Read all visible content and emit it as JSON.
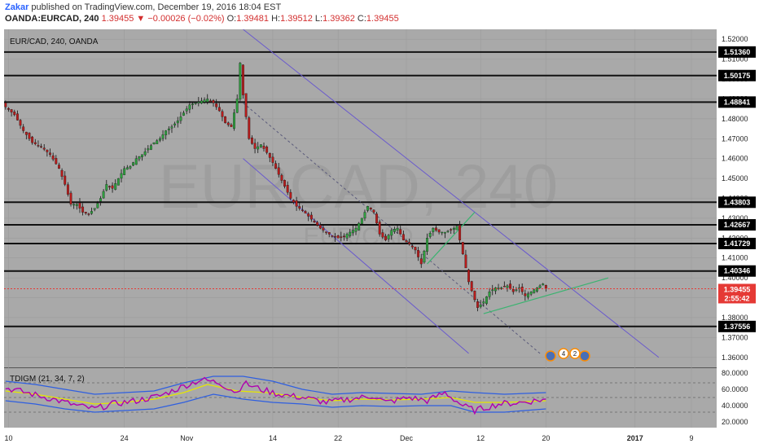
{
  "header": {
    "author": "Zakar",
    "published": "published on TradingView.com, December 19, 2016 18:04 EST",
    "symbol": "OANDA:EURCAD, 240",
    "last": "1.39455",
    "change": "▼ −0.00026 (−0.02%)",
    "ohlc_labels": [
      "O:",
      "H:",
      "L:",
      "C:"
    ],
    "ohlc_values": [
      "1.39481",
      "1.39512",
      "1.39362",
      "1.39455"
    ]
  },
  "colors": {
    "background": "#a9a9a9",
    "axis_bg": "#ffffff",
    "bull": "#2e9e3e",
    "bear": "#b71c1c",
    "channel": "#6a5acd",
    "trend": "#3cb371",
    "rsi": "#b000b0",
    "signal": "#e6e600",
    "bands": "#2f5fe0",
    "price_label": "#e53935"
  },
  "chart_data": [
    {
      "type": "candlestick",
      "title": "EUR/CAD, 240, OANDA",
      "watermark": "EURCAD, 240",
      "watermark_sub": "EUR/CAD",
      "ylim": [
        1.355,
        1.525
      ],
      "y_ticks": [
        1.52,
        1.51,
        1.5,
        1.49,
        1.48,
        1.47,
        1.46,
        1.45,
        1.44,
        1.43,
        1.42,
        1.41,
        1.4,
        1.39,
        1.38,
        1.37,
        1.36
      ],
      "x_ticks": [
        {
          "label": "10",
          "bar": 1
        },
        {
          "label": "24",
          "bar": 40
        },
        {
          "label": "Nov",
          "bar": 61
        },
        {
          "label": "14",
          "bar": 90
        },
        {
          "label": "22",
          "bar": 112
        },
        {
          "label": "Dec",
          "bar": 135
        },
        {
          "label": "12",
          "bar": 160
        },
        {
          "label": "20",
          "bar": 182
        },
        {
          "label": "2017",
          "bar": 212
        },
        {
          "label": "9",
          "bar": 231
        }
      ],
      "bars_total": 240,
      "close_path": [
        [
          0,
          1.486
        ],
        [
          3,
          1.482
        ],
        [
          6,
          1.474
        ],
        [
          9,
          1.468
        ],
        [
          12,
          1.466
        ],
        [
          15,
          1.462
        ],
        [
          18,
          1.455
        ],
        [
          20,
          1.447
        ],
        [
          22,
          1.437
        ],
        [
          24,
          1.437
        ],
        [
          26,
          1.433
        ],
        [
          28,
          1.432
        ],
        [
          30,
          1.435
        ],
        [
          32,
          1.44
        ],
        [
          34,
          1.447
        ],
        [
          36,
          1.445
        ],
        [
          38,
          1.45
        ],
        [
          40,
          1.455
        ],
        [
          42,
          1.456
        ],
        [
          44,
          1.46
        ],
        [
          46,
          1.462
        ],
        [
          48,
          1.465
        ],
        [
          50,
          1.468
        ],
        [
          52,
          1.47
        ],
        [
          54,
          1.474
        ],
        [
          56,
          1.476
        ],
        [
          58,
          1.479
        ],
        [
          60,
          1.483
        ],
        [
          62,
          1.487
        ],
        [
          64,
          1.488
        ],
        [
          66,
          1.489
        ],
        [
          68,
          1.49
        ],
        [
          70,
          1.488
        ],
        [
          72,
          1.484
        ],
        [
          74,
          1.478
        ],
        [
          76,
          1.476
        ],
        [
          78,
          1.49
        ],
        [
          79,
          1.508
        ],
        [
          80,
          1.492
        ],
        [
          82,
          1.47
        ],
        [
          84,
          1.465
        ],
        [
          86,
          1.467
        ],
        [
          88,
          1.463
        ],
        [
          90,
          1.458
        ],
        [
          92,
          1.452
        ],
        [
          94,
          1.446
        ],
        [
          96,
          1.44
        ],
        [
          98,
          1.436
        ],
        [
          100,
          1.434
        ],
        [
          102,
          1.431
        ],
        [
          104,
          1.428
        ],
        [
          106,
          1.425
        ],
        [
          108,
          1.423
        ],
        [
          110,
          1.421
        ],
        [
          112,
          1.42
        ],
        [
          114,
          1.421
        ],
        [
          116,
          1.423
        ],
        [
          118,
          1.425
        ],
        [
          120,
          1.43
        ],
        [
          122,
          1.436
        ],
        [
          124,
          1.433
        ],
        [
          126,
          1.422
        ],
        [
          128,
          1.419
        ],
        [
          130,
          1.424
        ],
        [
          132,
          1.425
        ],
        [
          134,
          1.419
        ],
        [
          136,
          1.417
        ],
        [
          138,
          1.414
        ],
        [
          140,
          1.407
        ],
        [
          142,
          1.42
        ],
        [
          144,
          1.425
        ],
        [
          146,
          1.423
        ],
        [
          148,
          1.423
        ],
        [
          150,
          1.424
        ],
        [
          152,
          1.426
        ],
        [
          154,
          1.412
        ],
        [
          156,
          1.398
        ],
        [
          158,
          1.389
        ],
        [
          159,
          1.385
        ],
        [
          161,
          1.388
        ],
        [
          163,
          1.393
        ],
        [
          165,
          1.395
        ],
        [
          167,
          1.395
        ],
        [
          169,
          1.396
        ],
        [
          171,
          1.393
        ],
        [
          173,
          1.395
        ],
        [
          175,
          1.391
        ],
        [
          177,
          1.393
        ],
        [
          179,
          1.395
        ],
        [
          181,
          1.397
        ],
        [
          182,
          1.3946
        ]
      ],
      "levels": [
        {
          "label": "1.51360",
          "value": 1.5136
        },
        {
          "label": "1.50175",
          "value": 1.50175
        },
        {
          "label": "1.48841",
          "value": 1.48841
        },
        {
          "label": "1.43803",
          "value": 1.43803
        },
        {
          "label": "1.42667",
          "value": 1.42667
        },
        {
          "label": "1.41729",
          "value": 1.41729
        },
        {
          "label": "1.40346",
          "value": 1.40346
        },
        {
          "label": "1.37556",
          "value": 1.37556
        }
      ],
      "current_price": {
        "label": "1.39455",
        "value": 1.39455,
        "countdown": "2:55:42"
      },
      "channel": {
        "upper": [
          [
            80,
            1.525
          ],
          [
            220,
            1.36
          ]
        ],
        "lower": [
          [
            80,
            1.46
          ],
          [
            156,
            1.362
          ]
        ],
        "mid": [
          [
            80,
            1.488
          ],
          [
            180,
            1.362
          ]
        ]
      },
      "trend_lines": [
        [
          [
            161,
            1.382
          ],
          [
            203,
            1.4
          ]
        ],
        [
          [
            142,
            1.407
          ],
          [
            158,
            1.433
          ]
        ]
      ],
      "event_icons": [
        "4",
        "2"
      ]
    },
    {
      "type": "line",
      "title": "TDIGM (21, 34, 7, 2)",
      "ylim": [
        17,
        83
      ],
      "y_ticks": [
        80,
        60,
        40,
        20
      ],
      "y_tick_labels": [
        "80.0000",
        "60.0000",
        "40.0000",
        "20.0000"
      ],
      "dashed_levels": [
        68,
        50,
        32
      ],
      "series": [
        {
          "key": "rsi",
          "points": [
            [
              0,
              62
            ],
            [
              8,
              55
            ],
            [
              16,
              48
            ],
            [
              24,
              40
            ],
            [
              30,
              36
            ],
            [
              36,
              42
            ],
            [
              44,
              46
            ],
            [
              52,
              52
            ],
            [
              60,
              64
            ],
            [
              66,
              72
            ],
            [
              72,
              68
            ],
            [
              78,
              56
            ],
            [
              80,
              68
            ],
            [
              86,
              60
            ],
            [
              92,
              54
            ],
            [
              100,
              50
            ],
            [
              108,
              44
            ],
            [
              116,
              48
            ],
            [
              124,
              52
            ],
            [
              128,
              44
            ],
            [
              136,
              50
            ],
            [
              142,
              46
            ],
            [
              148,
              56
            ],
            [
              154,
              40
            ],
            [
              158,
              34
            ],
            [
              166,
              42
            ],
            [
              174,
              44
            ],
            [
              182,
              48
            ]
          ]
        },
        {
          "key": "signal",
          "points": [
            [
              0,
              58
            ],
            [
              10,
              54
            ],
            [
              20,
              48
            ],
            [
              30,
              42
            ],
            [
              40,
              44
            ],
            [
              50,
              48
            ],
            [
              60,
              56
            ],
            [
              68,
              66
            ],
            [
              78,
              58
            ],
            [
              88,
              56
            ],
            [
              100,
              50
            ],
            [
              110,
              46
            ],
            [
              120,
              48
            ],
            [
              130,
              47
            ],
            [
              140,
              48
            ],
            [
              150,
              50
            ],
            [
              158,
              44
            ],
            [
              168,
              44
            ],
            [
              182,
              46
            ]
          ]
        },
        {
          "key": "band_upper",
          "points": [
            [
              0,
              70
            ],
            [
              10,
              66
            ],
            [
              20,
              60
            ],
            [
              30,
              54
            ],
            [
              40,
              56
            ],
            [
              50,
              58
            ],
            [
              60,
              68
            ],
            [
              70,
              76
            ],
            [
              80,
              76
            ],
            [
              90,
              70
            ],
            [
              100,
              60
            ],
            [
              110,
              54
            ],
            [
              120,
              56
            ],
            [
              130,
              55
            ],
            [
              140,
              54
            ],
            [
              150,
              58
            ],
            [
              158,
              56
            ],
            [
              168,
              54
            ],
            [
              182,
              56
            ]
          ]
        },
        {
          "key": "band_lower",
          "points": [
            [
              0,
              46
            ],
            [
              10,
              42
            ],
            [
              20,
              36
            ],
            [
              30,
              32
            ],
            [
              40,
              34
            ],
            [
              50,
              36
            ],
            [
              60,
              44
            ],
            [
              70,
              54
            ],
            [
              80,
              48
            ],
            [
              90,
              44
            ],
            [
              100,
              42
            ],
            [
              110,
              38
            ],
            [
              120,
              40
            ],
            [
              130,
              39
            ],
            [
              140,
              40
            ],
            [
              150,
              40
            ],
            [
              158,
              32
            ],
            [
              168,
              32
            ],
            [
              182,
              36
            ]
          ]
        }
      ]
    }
  ]
}
